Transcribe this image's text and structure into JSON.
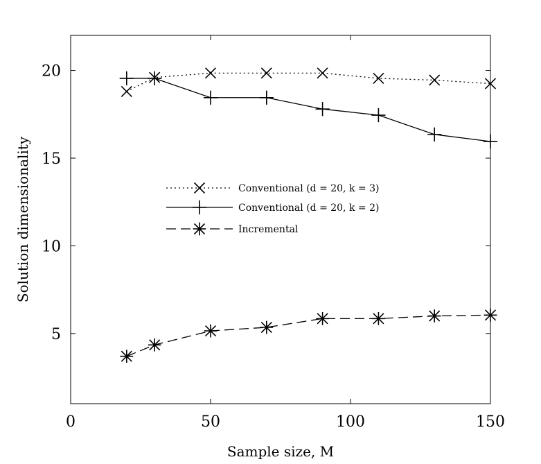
{
  "chart_data": {
    "type": "line",
    "title": "",
    "xlabel": "Sample size, M",
    "ylabel": "Solution dimensionality",
    "xlim": [
      0,
      150
    ],
    "ylim": [
      1,
      22
    ],
    "xticks": [
      0,
      50,
      100,
      150
    ],
    "yticks": [
      5,
      10,
      15,
      20
    ],
    "grid": false,
    "legend_position": "center",
    "series": [
      {
        "name": "Conventional (d = 20, k = 3)",
        "line_style": "dotted",
        "marker": "x",
        "color": "#000000",
        "x": [
          20,
          30,
          50,
          70,
          90,
          110,
          130,
          150
        ],
        "y": [
          18.8,
          19.6,
          19.85,
          19.85,
          19.85,
          19.55,
          19.45,
          19.25
        ]
      },
      {
        "name": "Conventional (d = 20, k = 2)",
        "line_style": "solid",
        "marker": "plus",
        "color": "#000000",
        "x": [
          20,
          30,
          50,
          70,
          90,
          110,
          130,
          150
        ],
        "y": [
          19.55,
          19.55,
          18.45,
          18.45,
          17.8,
          17.45,
          16.35,
          15.95
        ]
      },
      {
        "name": "Incremental",
        "line_style": "dashed",
        "marker": "asterisk",
        "color": "#000000",
        "x": [
          20,
          30,
          50,
          70,
          90,
          110,
          130,
          150
        ],
        "y": [
          3.7,
          4.35,
          5.15,
          5.35,
          5.85,
          5.85,
          6.0,
          6.05
        ]
      }
    ]
  }
}
